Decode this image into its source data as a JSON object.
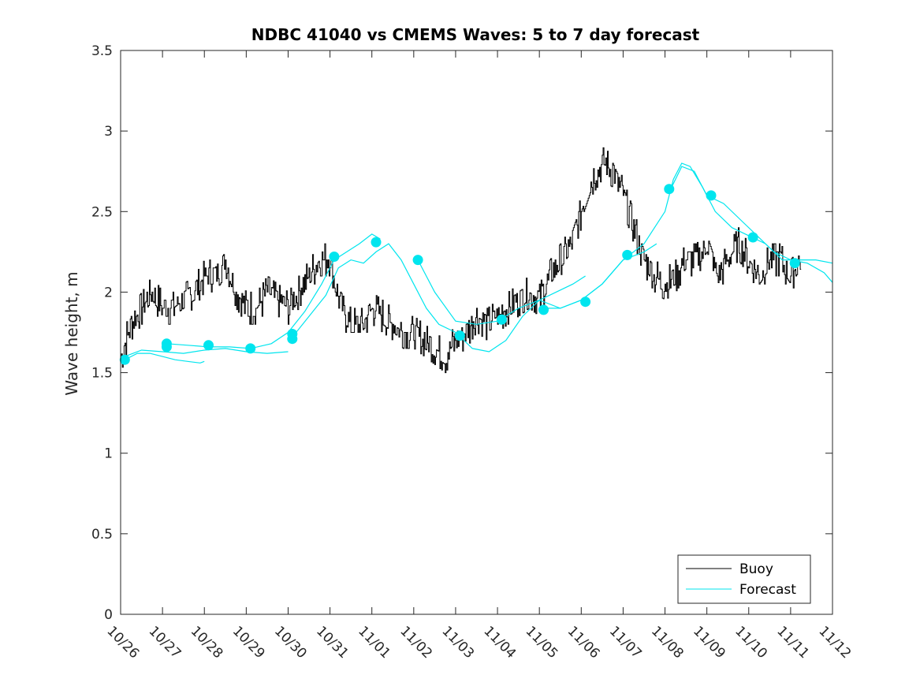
{
  "chart_data": {
    "type": "line",
    "title": "NDBC 41040 vs CMEMS Waves: 5 to 7 day forecast",
    "xlabel": "",
    "ylabel": "Wave height, m",
    "xlim": [
      0,
      17
    ],
    "ylim": [
      0,
      3.5
    ],
    "x_tick_labels": [
      "10/26",
      "10/27",
      "10/28",
      "10/29",
      "10/30",
      "10/31",
      "11/01",
      "11/02",
      "11/03",
      "11/04",
      "11/05",
      "11/06",
      "11/07",
      "11/08",
      "11/09",
      "11/10",
      "11/11",
      "11/12"
    ],
    "y_ticks": [
      0,
      0.5,
      1,
      1.5,
      2,
      2.5,
      3,
      3.5
    ],
    "y_tick_labels": [
      "0",
      "0.5",
      "1",
      "1.5",
      "2",
      "2.5",
      "3",
      "3.5"
    ],
    "grid": false,
    "legend_position": "bottom-right",
    "series": [
      {
        "name": "Buoy",
        "color": "#000000",
        "x_unit": "days since 10/26",
        "x": [
          0.0,
          0.25,
          0.5,
          0.75,
          1.0,
          1.25,
          1.5,
          1.75,
          2.0,
          2.25,
          2.5,
          2.75,
          3.0,
          3.25,
          3.5,
          3.75,
          4.0,
          4.25,
          4.5,
          4.75,
          5.0,
          5.25,
          5.5,
          5.75,
          6.0,
          6.25,
          6.5,
          6.75,
          7.0,
          7.25,
          7.5,
          7.75,
          8.0,
          8.25,
          8.5,
          8.75,
          9.0,
          9.25,
          9.5,
          9.75,
          10.0,
          10.25,
          10.5,
          10.75,
          11.0,
          11.25,
          11.5,
          11.75,
          12.0,
          12.25,
          12.5,
          12.75,
          13.0,
          13.25,
          13.5,
          13.75,
          14.0,
          14.25,
          14.5,
          14.75,
          15.0,
          15.25,
          15.5,
          15.75,
          16.0,
          16.25
        ],
        "values": [
          1.6,
          1.8,
          1.9,
          2.0,
          1.9,
          1.9,
          1.95,
          2.0,
          2.1,
          2.1,
          2.2,
          2.0,
          1.9,
          1.9,
          2.0,
          1.95,
          1.9,
          2.0,
          2.1,
          2.2,
          2.2,
          1.9,
          1.8,
          1.8,
          1.9,
          1.85,
          1.8,
          1.75,
          1.75,
          1.7,
          1.65,
          1.6,
          1.7,
          1.75,
          1.85,
          1.8,
          1.85,
          1.9,
          1.95,
          2.0,
          1.95,
          2.1,
          2.2,
          2.3,
          2.5,
          2.7,
          2.8,
          2.75,
          2.6,
          2.4,
          2.2,
          2.1,
          2.05,
          2.1,
          2.2,
          2.2,
          2.3,
          2.1,
          2.2,
          2.3,
          2.2,
          2.1,
          2.2,
          2.2,
          2.1,
          2.2
        ]
      },
      {
        "name": "Forecast",
        "color": "#00e5ee",
        "segments": [
          {
            "x": [
              0.1,
              0.4,
              0.7,
              1.0,
              1.3,
              1.6,
              1.9,
              2.0
            ],
            "values": [
              1.58,
              1.62,
              1.62,
              1.6,
              1.58,
              1.57,
              1.56,
              1.57
            ]
          },
          {
            "x": [
              0.1,
              0.5,
              1.0,
              1.5,
              2.0,
              2.5,
              3.0,
              3.5,
              4.0
            ],
            "values": [
              1.6,
              1.64,
              1.63,
              1.62,
              1.64,
              1.65,
              1.63,
              1.62,
              1.63
            ]
          },
          {
            "x": [
              1.1,
              1.6,
              2.1,
              2.6,
              3.1,
              3.6,
              4.0,
              4.4,
              4.8,
              5.1,
              5.4,
              5.7,
              6.0,
              6.2
            ],
            "values": [
              1.68,
              1.67,
              1.66,
              1.66,
              1.65,
              1.68,
              1.75,
              1.88,
              2.05,
              2.2,
              2.25,
              2.3,
              2.36,
              2.33
            ]
          },
          {
            "x": [
              4.1,
              4.5,
              4.9,
              5.2,
              5.5,
              5.8,
              6.1,
              6.4,
              6.7,
              7.0,
              7.3,
              7.6,
              8.0,
              8.4,
              8.8,
              9.2,
              9.6,
              10.0,
              10.4,
              10.8,
              11.1
            ],
            "values": [
              1.72,
              1.85,
              1.98,
              2.15,
              2.2,
              2.18,
              2.25,
              2.3,
              2.2,
              2.05,
              1.9,
              1.8,
              1.75,
              1.65,
              1.63,
              1.7,
              1.85,
              1.95,
              2.0,
              2.05,
              2.1
            ]
          },
          {
            "x": [
              7.1,
              7.5,
              8.0,
              8.5,
              9.0,
              9.5,
              10.0,
              10.5,
              11.0,
              11.5,
              12.0,
              12.5,
              13.0,
              13.2,
              13.4,
              13.6,
              13.9,
              14.2,
              14.6,
              15.0,
              15.4,
              15.8,
              16.2,
              16.6,
              17.0
            ],
            "values": [
              2.2,
              2.0,
              1.82,
              1.8,
              1.82,
              1.9,
              1.95,
              1.9,
              1.95,
              2.05,
              2.2,
              2.3,
              2.5,
              2.7,
              2.8,
              2.78,
              2.65,
              2.5,
              2.4,
              2.35,
              2.3,
              2.2,
              2.2,
              2.2,
              2.18
            ]
          },
          {
            "x": [
              10.1,
              10.5,
              11.0,
              11.5,
              12.0,
              12.5,
              12.8
            ],
            "values": [
              1.9,
              1.9,
              1.95,
              2.05,
              2.2,
              2.25,
              2.3
            ]
          },
          {
            "x": [
              13.1,
              13.4,
              13.7,
              14.0,
              14.4,
              14.8,
              15.2,
              15.6,
              16.0,
              16.4,
              16.8,
              17.0
            ],
            "values": [
              2.62,
              2.78,
              2.75,
              2.6,
              2.55,
              2.45,
              2.35,
              2.25,
              2.2,
              2.18,
              2.12,
              2.06
            ]
          }
        ],
        "markers_x": [
          0.1,
          1.1,
          1.1,
          2.1,
          3.1,
          4.1,
          4.1,
          5.1,
          6.1,
          7.1,
          8.1,
          9.1,
          10.1,
          11.1,
          12.1,
          13.1,
          14.1,
          15.1,
          16.1
        ],
        "markers_values": [
          1.58,
          1.68,
          1.66,
          1.67,
          1.65,
          1.74,
          1.71,
          2.22,
          2.31,
          2.2,
          1.73,
          1.83,
          1.89,
          1.94,
          2.23,
          2.64,
          2.6,
          2.34,
          2.18
        ]
      }
    ]
  }
}
